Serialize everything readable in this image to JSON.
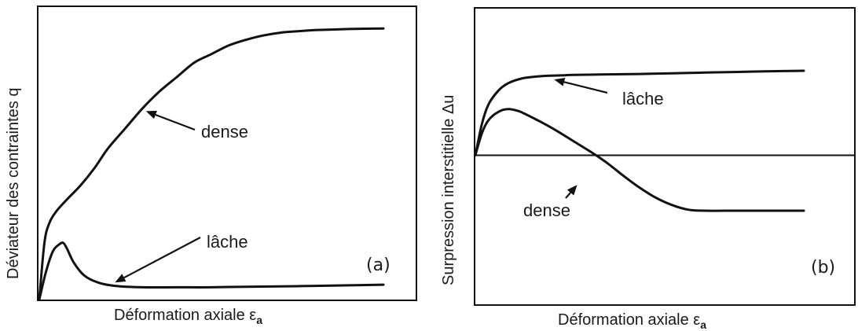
{
  "chart_data": [
    {
      "type": "line",
      "panel": "(a)",
      "xlabel": "Déformation axiale ε",
      "xlabel_sub": "a",
      "ylabel": "Déviateur des contraintes q",
      "xlim": [
        0,
        100
      ],
      "ylim": [
        0,
        100
      ],
      "series": [
        {
          "name": "dense",
          "x": [
            0,
            1.5,
            3,
            5,
            8,
            12,
            16,
            20,
            25,
            30,
            35,
            40,
            45,
            50,
            55,
            60,
            65,
            70,
            75,
            80,
            85,
            90,
            95,
            100
          ],
          "y": [
            0,
            20,
            27,
            31,
            35,
            40,
            46,
            53,
            60,
            67,
            73,
            78,
            83,
            86,
            89,
            91,
            92.5,
            93.5,
            94,
            94.4,
            94.6,
            94.8,
            94.9,
            95
          ]
        },
        {
          "name": "lâche",
          "x": [
            0,
            2,
            4,
            6,
            7,
            8,
            10,
            13,
            17,
            22,
            30,
            40,
            50,
            60,
            70,
            80,
            90,
            100
          ],
          "y": [
            0,
            10,
            17,
            19.5,
            19.8,
            18,
            13,
            8.5,
            6,
            4.8,
            4.3,
            4.3,
            4.3,
            4.5,
            4.6,
            4.8,
            5,
            5.2
          ]
        }
      ],
      "annotations": [
        {
          "text": "dense",
          "arrow_to": [
            31,
            66
          ]
        },
        {
          "text": "lâche",
          "arrow_to": [
            22,
            6
          ]
        }
      ]
    },
    {
      "type": "line",
      "panel": "(b)",
      "xlabel": "Déformation axiale ε",
      "xlabel_sub": "a",
      "ylabel": "Surpression interstitielle Δu",
      "xlim": [
        0,
        100
      ],
      "ylim": [
        -100,
        100
      ],
      "zero_line": true,
      "series": [
        {
          "name": "lâche",
          "x": [
            0,
            2,
            4,
            7,
            10,
            14,
            18,
            22,
            26,
            30,
            40,
            50,
            60,
            70,
            80,
            90,
            100
          ],
          "y": [
            0,
            34,
            55,
            70,
            78,
            83,
            85,
            86,
            86.5,
            87,
            87.6,
            88,
            88.8,
            89.5,
            90.2,
            91,
            91.5
          ]
        },
        {
          "name": "dense",
          "x": [
            0,
            2,
            4,
            7,
            10,
            13,
            15,
            20,
            25,
            30,
            35,
            40,
            45,
            50,
            55,
            60,
            65,
            70,
            80,
            90,
            100
          ],
          "y": [
            0,
            24,
            38,
            47,
            50,
            48,
            45,
            36,
            26,
            15,
            4,
            -8,
            -22,
            -35,
            -46,
            -54,
            -59,
            -60,
            -60,
            -60,
            -60
          ]
        }
      ],
      "annotations": [
        {
          "text": "lâche",
          "arrow_to": [
            24,
            82
          ]
        },
        {
          "text": "dense",
          "arrow_to": [
            31,
            -32
          ]
        }
      ]
    }
  ]
}
